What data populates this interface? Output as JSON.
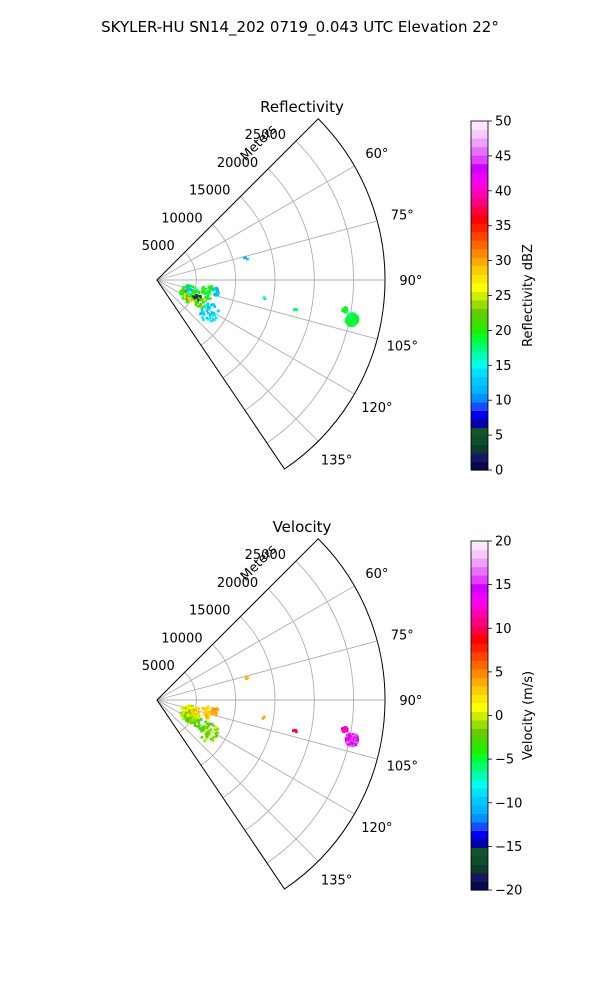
{
  "suptitle": "SKYLER-HU  SN14_202  0719_0.043 UTC Elevation 22°",
  "colors": {
    "grid": "#b0b0b0",
    "frame": "#000000"
  },
  "chart_data": [
    {
      "type": "scatter",
      "projection": "polar-sector",
      "title": "Reflectivity",
      "radial_unit_label": "Meters",
      "theta_range_deg": [
        45,
        146
      ],
      "theta_ticks_deg": [
        60,
        75,
        90,
        105,
        120,
        135
      ],
      "theta_tick_labels": [
        "60°",
        "75°",
        "90°",
        "105°",
        "120°",
        "135°"
      ],
      "r_max": 29000,
      "r_ticks": [
        5000,
        10000,
        15000,
        20000,
        25000
      ],
      "r_tick_labels": [
        "5000",
        "10000",
        "15000",
        "20000",
        "25000"
      ],
      "grid": true,
      "colorbar": {
        "label": "Reflectivity dBZ",
        "min": 0,
        "max": 50,
        "ticks": [
          0,
          5,
          10,
          15,
          20,
          25,
          30,
          35,
          40,
          45,
          50
        ],
        "tick_labels": [
          "0",
          "5",
          "10",
          "15",
          "20",
          "25",
          "30",
          "35",
          "40",
          "45",
          "50"
        ],
        "palette": [
          "#08084f",
          "#16165f",
          "#0e3b2b",
          "#0c4d2a",
          "#14542a",
          "#0000aa",
          "#0000ee",
          "#1a4cff",
          "#0090ff",
          "#00b4ff",
          "#00c8ff",
          "#00e0ff",
          "#00ffe8",
          "#00ffb0",
          "#00ff70",
          "#00ff30",
          "#22ee00",
          "#44dd00",
          "#66cc00",
          "#99dd00",
          "#ccee00",
          "#ffff00",
          "#ffe600",
          "#ffcc00",
          "#ffaa00",
          "#ff8800",
          "#ff6600",
          "#ff4400",
          "#ff1e00",
          "#ff0000",
          "#ff0044",
          "#ff0080",
          "#ff00b0",
          "#ff00e0",
          "#ee00ff",
          "#d000ff",
          "#e040ff",
          "#e870ff",
          "#f0a0ff",
          "#f8c8ff",
          "#fde6ff"
        ]
      },
      "clusters": [
        {
          "theta": 113,
          "r": 4400,
          "n": 60,
          "sp": 1100,
          "values": [
            18,
            22
          ]
        },
        {
          "theta": 114.5,
          "r": 4600,
          "n": 28,
          "sp": 600,
          "values": [
            34,
            38
          ]
        },
        {
          "theta": 116,
          "r": 4900,
          "n": 30,
          "sp": 900,
          "values": [
            24,
            30
          ]
        },
        {
          "theta": 111.5,
          "r": 4700,
          "n": 18,
          "sp": 800,
          "values": [
            14,
            20
          ]
        },
        {
          "theta": 114,
          "r": 5600,
          "n": 12,
          "sp": 500,
          "values": [
            2,
            6
          ]
        },
        {
          "theta": 103,
          "r": 6700,
          "n": 30,
          "sp": 900,
          "values": [
            18,
            22
          ]
        },
        {
          "theta": 101.5,
          "r": 7600,
          "n": 12,
          "sp": 500,
          "values": [
            11,
            14
          ]
        },
        {
          "theta": 122,
          "r": 7800,
          "n": 40,
          "sp": 1200,
          "values": [
            11,
            15
          ]
        },
        {
          "theta": 119,
          "r": 6300,
          "n": 14,
          "sp": 800,
          "values": [
            20,
            24
          ]
        },
        {
          "theta": 76,
          "r": 11700,
          "n": 3,
          "sp": 250,
          "values": [
            11,
            13
          ]
        },
        {
          "theta": 99.5,
          "r": 13800,
          "n": 2,
          "sp": 200,
          "values": [
            17,
            18
          ]
        },
        {
          "theta": 102.5,
          "r": 18000,
          "n": 4,
          "sp": 250,
          "values": [
            17,
            20
          ]
        },
        {
          "theta": 99,
          "r": 24200,
          "n": 25,
          "sp": 350,
          "values": [
            17,
            21
          ]
        },
        {
          "theta": 101.5,
          "r": 25300,
          "n": 140,
          "sp": 800,
          "values": [
            17,
            21
          ]
        },
        {
          "theta": 105.5,
          "r": 4200,
          "n": 4,
          "sp": 400,
          "values": [
            11,
            13
          ]
        },
        {
          "theta": 106.5,
          "r": 5200,
          "n": 6,
          "sp": 500,
          "values": [
            20,
            22
          ]
        }
      ]
    },
    {
      "type": "scatter",
      "projection": "polar-sector",
      "title": "Velocity",
      "radial_unit_label": "Meters",
      "theta_range_deg": [
        45,
        146
      ],
      "theta_ticks_deg": [
        60,
        75,
        90,
        105,
        120,
        135
      ],
      "theta_tick_labels": [
        "60°",
        "75°",
        "90°",
        "105°",
        "120°",
        "135°"
      ],
      "r_max": 29000,
      "r_ticks": [
        5000,
        10000,
        15000,
        20000,
        25000
      ],
      "r_tick_labels": [
        "5000",
        "10000",
        "15000",
        "20000",
        "25000"
      ],
      "grid": true,
      "colorbar": {
        "label": "Velocity (m/s)",
        "min": -20,
        "max": 20,
        "ticks": [
          -20,
          -15,
          -10,
          -5,
          0,
          5,
          10,
          15,
          20
        ],
        "tick_labels": [
          "−20",
          "−15",
          "−10",
          "−5",
          "0",
          "5",
          "10",
          "15",
          "20"
        ],
        "palette": [
          "#08084f",
          "#16165f",
          "#0e3b2b",
          "#0c4d2a",
          "#14542a",
          "#0000aa",
          "#0000ee",
          "#1a4cff",
          "#0090ff",
          "#00b4ff",
          "#00c8ff",
          "#00e0ff",
          "#00ffe8",
          "#00ffb0",
          "#00ff70",
          "#00ff30",
          "#22ee00",
          "#44dd00",
          "#66cc00",
          "#99dd00",
          "#ccee00",
          "#ffff00",
          "#ffe600",
          "#ffcc00",
          "#ffaa00",
          "#ff8800",
          "#ff6600",
          "#ff4400",
          "#ff1e00",
          "#ff0000",
          "#ff0044",
          "#ff0080",
          "#ff00b0",
          "#ff00e0",
          "#ee00ff",
          "#d000ff",
          "#e040ff",
          "#e870ff",
          "#f0a0ff",
          "#f8c8ff",
          "#fde6ff"
        ]
      },
      "clusters": [
        {
          "theta": 113,
          "r": 4400,
          "n": 60,
          "sp": 1100,
          "values": [
            -2,
            1
          ]
        },
        {
          "theta": 114.5,
          "r": 4600,
          "n": 28,
          "sp": 600,
          "values": [
            -3,
            0
          ]
        },
        {
          "theta": 116,
          "r": 4900,
          "n": 30,
          "sp": 900,
          "values": [
            -3,
            -1
          ]
        },
        {
          "theta": 111.5,
          "r": 4700,
          "n": 18,
          "sp": 800,
          "values": [
            1,
            3
          ]
        },
        {
          "theta": 114,
          "r": 5600,
          "n": 12,
          "sp": 500,
          "values": [
            -1,
            1
          ]
        },
        {
          "theta": 103,
          "r": 6700,
          "n": 30,
          "sp": 900,
          "values": [
            2,
            4
          ]
        },
        {
          "theta": 101.5,
          "r": 7600,
          "n": 12,
          "sp": 500,
          "values": [
            3,
            5
          ]
        },
        {
          "theta": 122,
          "r": 7800,
          "n": 40,
          "sp": 1200,
          "values": [
            -3,
            0
          ]
        },
        {
          "theta": 119,
          "r": 6300,
          "n": 14,
          "sp": 800,
          "values": [
            -4,
            -1
          ]
        },
        {
          "theta": 76,
          "r": 11700,
          "n": 3,
          "sp": 250,
          "values": [
            3,
            4
          ]
        },
        {
          "theta": 99.5,
          "r": 13800,
          "n": 2,
          "sp": 200,
          "values": [
            3,
            4
          ]
        },
        {
          "theta": 102.5,
          "r": 18000,
          "n": 4,
          "sp": 250,
          "values": [
            9,
            10
          ]
        },
        {
          "theta": 99,
          "r": 24200,
          "n": 25,
          "sp": 350,
          "values": [
            10,
            14
          ]
        },
        {
          "theta": 101.5,
          "r": 25300,
          "n": 140,
          "sp": 800,
          "values": [
            13,
            17
          ]
        },
        {
          "theta": 105.5,
          "r": 4200,
          "n": 4,
          "sp": 400,
          "values": [
            1,
            3
          ]
        },
        {
          "theta": 106.5,
          "r": 5200,
          "n": 6,
          "sp": 500,
          "values": [
            2,
            4
          ]
        }
      ]
    }
  ]
}
